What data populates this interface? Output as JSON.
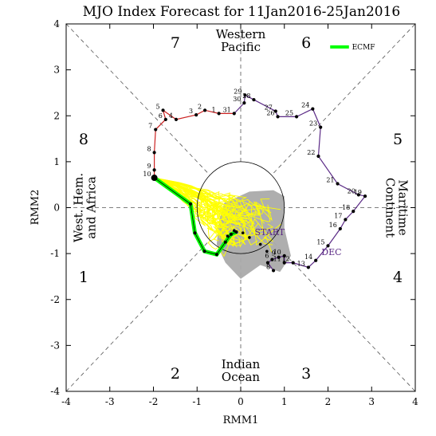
{
  "chart_data": {
    "type": "line",
    "title": "MJO Index Forecast for 11Jan2016-25Jan2016",
    "xlabel": "RMM1",
    "ylabel": "RMM2",
    "xlim": [
      -4,
      4
    ],
    "ylim": [
      -4,
      4
    ],
    "xticks": [
      "-4",
      "-3",
      "-2",
      "-1",
      "0",
      "1",
      "2",
      "3",
      "4"
    ],
    "yticks": [
      "-4",
      "-3",
      "-2",
      "-1",
      "0",
      "1",
      "2",
      "3",
      "4"
    ],
    "phases": [
      {
        "label": "1",
        "x": -3.6,
        "y": -1.5
      },
      {
        "label": "2",
        "x": -1.5,
        "y": -3.6
      },
      {
        "label": "3",
        "x": 1.5,
        "y": -3.6
      },
      {
        "label": "4",
        "x": 3.6,
        "y": -1.5
      },
      {
        "label": "5",
        "x": 3.6,
        "y": 1.5
      },
      {
        "label": "6",
        "x": 1.5,
        "y": 3.6
      },
      {
        "label": "7",
        "x": -1.5,
        "y": 3.6
      },
      {
        "label": "8",
        "x": -3.6,
        "y": 1.5
      }
    ],
    "regions": {
      "top": [
        "Western",
        "Pacific"
      ],
      "bottom": [
        "Indian",
        "Ocean"
      ],
      "left": [
        "West. Hem.",
        "and Africa"
      ],
      "right": [
        "Maritime",
        "Continent"
      ]
    },
    "legend": {
      "label": "ECMF",
      "color": "#00ff00",
      "placement": "top-right"
    },
    "annotations": [
      {
        "text": "START",
        "x": 0.32,
        "y": -0.6
      },
      {
        "text": "DEC",
        "x": 1.85,
        "y": -1.03
      }
    ],
    "colors": {
      "dec": "#5b2a86",
      "jan": "#cc2222",
      "ensemble": "#ffff00",
      "mean": "#00ff00",
      "spread": "#aaaaaa"
    },
    "observed_dec": [
      {
        "day": "8",
        "x": 0.75,
        "y": -1.37
      },
      {
        "day": "",
        "x": 0.62,
        "y": -1.2
      },
      {
        "day": "6",
        "x": 0.72,
        "y": -1.13
      },
      {
        "day": "9",
        "x": 0.87,
        "y": -1.08
      },
      {
        "day": "10",
        "x": 1.0,
        "y": -1.05
      },
      {
        "day": "11",
        "x": 1.0,
        "y": -1.2
      },
      {
        "day": "12",
        "x": 1.2,
        "y": -1.2
      },
      {
        "day": "13",
        "x": 1.55,
        "y": -1.3
      },
      {
        "day": "14",
        "x": 1.72,
        "y": -1.15
      },
      {
        "day": "15",
        "x": 2.0,
        "y": -0.83
      },
      {
        "day": "16",
        "x": 2.28,
        "y": -0.46
      },
      {
        "day": "17",
        "x": 2.4,
        "y": -0.26
      },
      {
        "day": "18",
        "x": 2.58,
        "y": -0.08
      },
      {
        "day": "19",
        "x": 2.85,
        "y": 0.25
      },
      {
        "day": "20",
        "x": 2.7,
        "y": 0.28
      },
      {
        "day": "21",
        "x": 2.22,
        "y": 0.52
      },
      {
        "day": "22",
        "x": 1.78,
        "y": 1.12
      },
      {
        "day": "23",
        "x": 1.83,
        "y": 1.75
      },
      {
        "day": "24",
        "x": 1.65,
        "y": 2.15
      },
      {
        "day": "25",
        "x": 1.28,
        "y": 1.98
      },
      {
        "day": "26",
        "x": 0.85,
        "y": 1.98
      },
      {
        "day": "27",
        "x": 0.8,
        "y": 2.1
      },
      {
        "day": "28",
        "x": 0.3,
        "y": 2.35
      },
      {
        "day": "29",
        "x": 0.1,
        "y": 2.45
      },
      {
        "day": "30",
        "x": 0.08,
        "y": 2.28
      },
      {
        "day": "31",
        "x": -0.15,
        "y": 2.05
      }
    ],
    "observed_jan": [
      {
        "day": "31",
        "x": -0.15,
        "y": 2.05
      },
      {
        "day": "1",
        "x": -0.5,
        "y": 2.05
      },
      {
        "day": "2",
        "x": -0.82,
        "y": 2.12
      },
      {
        "day": "3",
        "x": -1.02,
        "y": 2.02
      },
      {
        "day": "4",
        "x": -1.48,
        "y": 1.92
      },
      {
        "day": "5",
        "x": -1.78,
        "y": 2.12
      },
      {
        "day": "6",
        "x": -1.72,
        "y": 1.92
      },
      {
        "day": "7",
        "x": -1.95,
        "y": 1.7
      },
      {
        "day": "8",
        "x": -1.98,
        "y": 1.2
      },
      {
        "day": "9",
        "x": -1.98,
        "y": 0.82
      },
      {
        "day": "10",
        "x": -1.98,
        "y": 0.65
      }
    ],
    "ensemble_mean": [
      {
        "x": -1.98,
        "y": 0.65
      },
      {
        "x": -1.15,
        "y": 0.08
      },
      {
        "x": -1.05,
        "y": -0.55
      },
      {
        "x": -0.83,
        "y": -0.95
      },
      {
        "x": -0.55,
        "y": -1.02
      },
      {
        "x": -0.35,
        "y": -0.75
      },
      {
        "x": -0.22,
        "y": -0.58
      },
      {
        "x": -0.1,
        "y": -0.53
      }
    ],
    "spread_polygon": [
      {
        "x": -0.38,
        "y": 0.1
      },
      {
        "x": 0.2,
        "y": 0.35
      },
      {
        "x": 0.75,
        "y": 0.38
      },
      {
        "x": 1.0,
        "y": 0.25
      },
      {
        "x": 1.0,
        "y": -0.45
      },
      {
        "x": 1.15,
        "y": -1.05
      },
      {
        "x": 0.9,
        "y": -1.4
      },
      {
        "x": 0.45,
        "y": -1.25
      },
      {
        "x": 0.0,
        "y": -1.55
      },
      {
        "x": -0.35,
        "y": -1.2
      },
      {
        "x": -0.55,
        "y": -0.8
      },
      {
        "x": -0.5,
        "y": -0.3
      }
    ]
  }
}
